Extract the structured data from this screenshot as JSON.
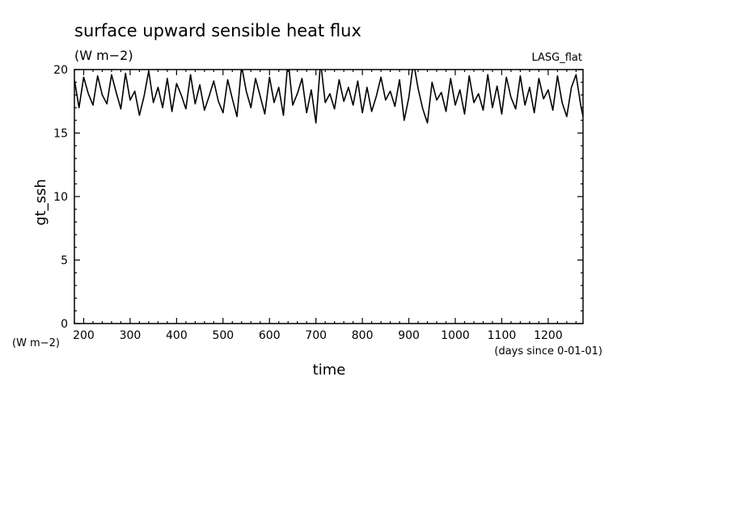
{
  "chart_data": {
    "type": "line",
    "title": "surface upward sensible heat flux",
    "subtitle": "(W m−2)",
    "dataset_label": "LASG_flat",
    "xlabel": "time",
    "x_unit": "(days since 0-01-01)",
    "ylabel": "gt_ssh",
    "y_unit": "(W m−2)",
    "xlim": [
      180,
      1275
    ],
    "ylim": [
      0,
      20
    ],
    "x_ticks": [
      200,
      300,
      400,
      500,
      600,
      700,
      800,
      900,
      1000,
      1100,
      1200
    ],
    "x_tick_labels": [
      "200",
      "300",
      "400",
      "500",
      "600",
      "700",
      "800",
      "900",
      "1000",
      "1100",
      "1200"
    ],
    "y_ticks": [
      0,
      5,
      10,
      15,
      20
    ],
    "y_tick_labels": [
      "0",
      "5",
      "10",
      "15",
      "20"
    ],
    "grid": false,
    "series": [
      {
        "x": [
          180,
          190,
          200,
          210,
          220,
          230,
          240,
          250,
          260,
          270,
          280,
          290,
          300,
          310,
          320,
          330,
          340,
          350,
          360,
          370,
          380,
          390,
          400,
          410,
          420,
          430,
          440,
          450,
          460,
          470,
          480,
          490,
          500,
          510,
          520,
          530,
          540,
          550,
          560,
          570,
          580,
          590,
          600,
          610,
          620,
          630,
          640,
          650,
          660,
          670,
          680,
          690,
          700,
          710,
          720,
          730,
          740,
          750,
          760,
          770,
          780,
          790,
          800,
          810,
          820,
          830,
          840,
          850,
          860,
          870,
          880,
          890,
          900,
          910,
          920,
          930,
          940,
          950,
          960,
          970,
          980,
          990,
          1000,
          1010,
          1020,
          1030,
          1040,
          1050,
          1060,
          1070,
          1080,
          1090,
          1100,
          1110,
          1120,
          1130,
          1140,
          1150,
          1160,
          1170,
          1180,
          1190,
          1200,
          1210,
          1220,
          1230,
          1240,
          1250,
          1260,
          1270,
          1275
        ],
        "values": [
          19.2,
          17.0,
          19.4,
          18.1,
          17.2,
          19.5,
          18.0,
          17.3,
          19.6,
          18.2,
          16.9,
          19.7,
          17.6,
          18.3,
          16.4,
          17.9,
          19.9,
          17.4,
          18.6,
          17.0,
          19.3,
          16.7,
          18.9,
          18.0,
          16.9,
          19.6,
          17.3,
          18.8,
          16.8,
          17.9,
          19.1,
          17.5,
          16.6,
          19.2,
          17.7,
          16.3,
          20.3,
          18.3,
          17.0,
          19.3,
          17.9,
          16.5,
          19.4,
          17.4,
          18.6,
          16.4,
          20.8,
          17.2,
          18.1,
          19.3,
          16.6,
          18.4,
          15.8,
          20.6,
          17.4,
          18.1,
          16.9,
          19.2,
          17.5,
          18.6,
          17.2,
          19.1,
          16.6,
          18.6,
          16.7,
          17.9,
          19.4,
          17.6,
          18.3,
          17.1,
          19.2,
          16.0,
          17.8,
          20.6,
          18.5,
          16.9,
          15.8,
          19.0,
          17.6,
          18.2,
          16.7,
          19.3,
          17.2,
          18.4,
          16.5,
          19.5,
          17.4,
          18.1,
          16.8,
          19.6,
          17.0,
          18.7,
          16.5,
          19.4,
          17.8,
          16.9,
          19.5,
          17.2,
          18.6,
          16.6,
          19.3,
          17.7,
          18.4,
          16.8,
          19.5,
          17.4,
          16.3,
          18.6,
          19.6,
          17.2,
          16.3
        ]
      }
    ]
  }
}
